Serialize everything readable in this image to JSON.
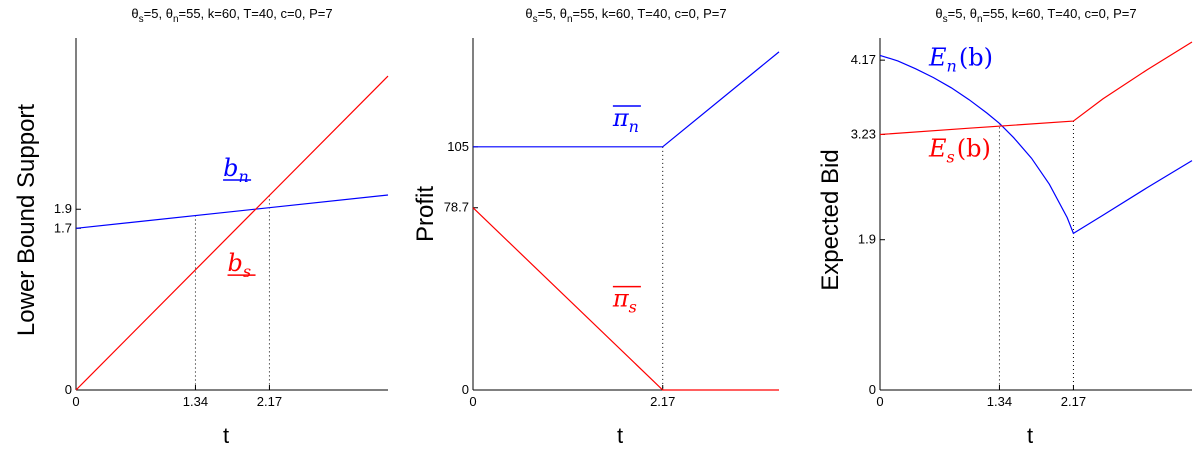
{
  "chart_data": [
    {
      "type": "line",
      "title": "θs=5, θn=55, k=60, T=40, c=0, P=7",
      "title_parts": {
        "a": "θ",
        "b": "s",
        "c": "=5, θ",
        "d": "n",
        "e": "=55, k=60, T=40, c=0, P=7"
      },
      "xlabel": "t",
      "ylabel": "Lower Bound Support",
      "xlim": [
        0,
        3.5
      ],
      "ylim": [
        0,
        3.7
      ],
      "xticks": [
        {
          "v": 0,
          "label": "0"
        },
        {
          "v": 1.34,
          "label": "1.34"
        },
        {
          "v": 2.17,
          "label": "2.17"
        }
      ],
      "yticks": [
        {
          "v": 0,
          "label": "0"
        },
        {
          "v": 1.7,
          "label": "1.7"
        },
        {
          "v": 1.9,
          "label": "1.9"
        }
      ],
      "guides": [
        1.34,
        2.17
      ],
      "grid": false,
      "series": [
        {
          "id": "bn",
          "color": "#0000ff",
          "x": [
            0,
            3.5
          ],
          "y": [
            1.7,
            2.05
          ],
          "label_base": "b",
          "label_sub": "n",
          "label_at": [
            1.65,
            2.25
          ]
        },
        {
          "id": "bs",
          "color": "#ff0000",
          "x": [
            0,
            3.5
          ],
          "y": [
            0,
            3.3
          ],
          "label_base": "b",
          "label_sub": "s",
          "label_at": [
            1.7,
            1.25
          ]
        }
      ]
    },
    {
      "type": "line",
      "title": "θs=5, θn=55, k=60, T=40, c=0, P=7",
      "title_parts": {
        "a": "θ",
        "b": "s",
        "c": "=5, θ",
        "d": "n",
        "e": "=55, k=60, T=40, c=0, P=7"
      },
      "xlabel": "t",
      "ylabel": "Profit",
      "xlim": [
        0,
        3.5
      ],
      "ylim": [
        0,
        152
      ],
      "xticks": [
        {
          "v": 0,
          "label": "0"
        },
        {
          "v": 2.17,
          "label": "2.17"
        }
      ],
      "yticks": [
        {
          "v": 0,
          "label": "0"
        },
        {
          "v": 78.7,
          "label": "78.7"
        },
        {
          "v": 105,
          "label": "105"
        }
      ],
      "guides": [
        2.17
      ],
      "grid": false,
      "series": [
        {
          "id": "pin",
          "color": "#0000ff",
          "x": [
            0,
            2.17,
            3.5
          ],
          "y": [
            105,
            105,
            146
          ],
          "label_base": "π",
          "label_sub": "n",
          "label_at": [
            1.6,
            114
          ]
        },
        {
          "id": "pis",
          "color": "#ff0000",
          "x": [
            0,
            2.17,
            3.5
          ],
          "y": [
            78.7,
            0,
            0
          ],
          "label_base": "π",
          "label_sub": "s",
          "label_at": [
            1.6,
            36
          ]
        }
      ]
    },
    {
      "type": "line",
      "title": "θs=5, θn=55, k=60, T=40, c=0, P=7",
      "title_parts": {
        "a": "θ",
        "b": "s",
        "c": "=5, θ",
        "d": "n",
        "e": "=55, k=60, T=40, c=0, P=7"
      },
      "xlabel": "t",
      "ylabel": "Expected Bid",
      "xlim": [
        0,
        3.5
      ],
      "ylim": [
        0,
        4.45
      ],
      "xticks": [
        {
          "v": 0,
          "label": "0"
        },
        {
          "v": 1.34,
          "label": "1.34"
        },
        {
          "v": 2.17,
          "label": "2.17"
        }
      ],
      "yticks": [
        {
          "v": 0,
          "label": "0"
        },
        {
          "v": 1.9,
          "label": "1.9"
        },
        {
          "v": 3.23,
          "label": "3.23"
        },
        {
          "v": 4.17,
          "label": "4.17"
        }
      ],
      "guides": [
        1.34,
        2.17
      ],
      "grid": false,
      "series": [
        {
          "id": "en",
          "color": "#0000ff",
          "x": [
            0,
            0.2,
            0.4,
            0.6,
            0.8,
            1.0,
            1.2,
            1.34,
            1.5,
            1.7,
            1.9,
            2.1,
            2.17,
            2.5,
            3.0,
            3.5
          ],
          "y": [
            4.23,
            4.16,
            4.06,
            3.95,
            3.82,
            3.67,
            3.5,
            3.37,
            3.19,
            2.93,
            2.6,
            2.18,
            1.98,
            2.21,
            2.56,
            2.9
          ],
          "label_base": "E",
          "label_sub": "n",
          "label_text": "(b)",
          "label_at": [
            0.55,
            4.1
          ]
        },
        {
          "id": "es",
          "color": "#ff0000",
          "x": [
            0,
            1.0,
            2.17,
            2.5,
            3.0,
            3.5
          ],
          "y": [
            3.23,
            3.31,
            3.4,
            3.68,
            4.05,
            4.4
          ],
          "label_base": "E",
          "label_sub": "s",
          "label_text": "(b)",
          "label_at": [
            0.55,
            2.95
          ]
        }
      ]
    }
  ]
}
